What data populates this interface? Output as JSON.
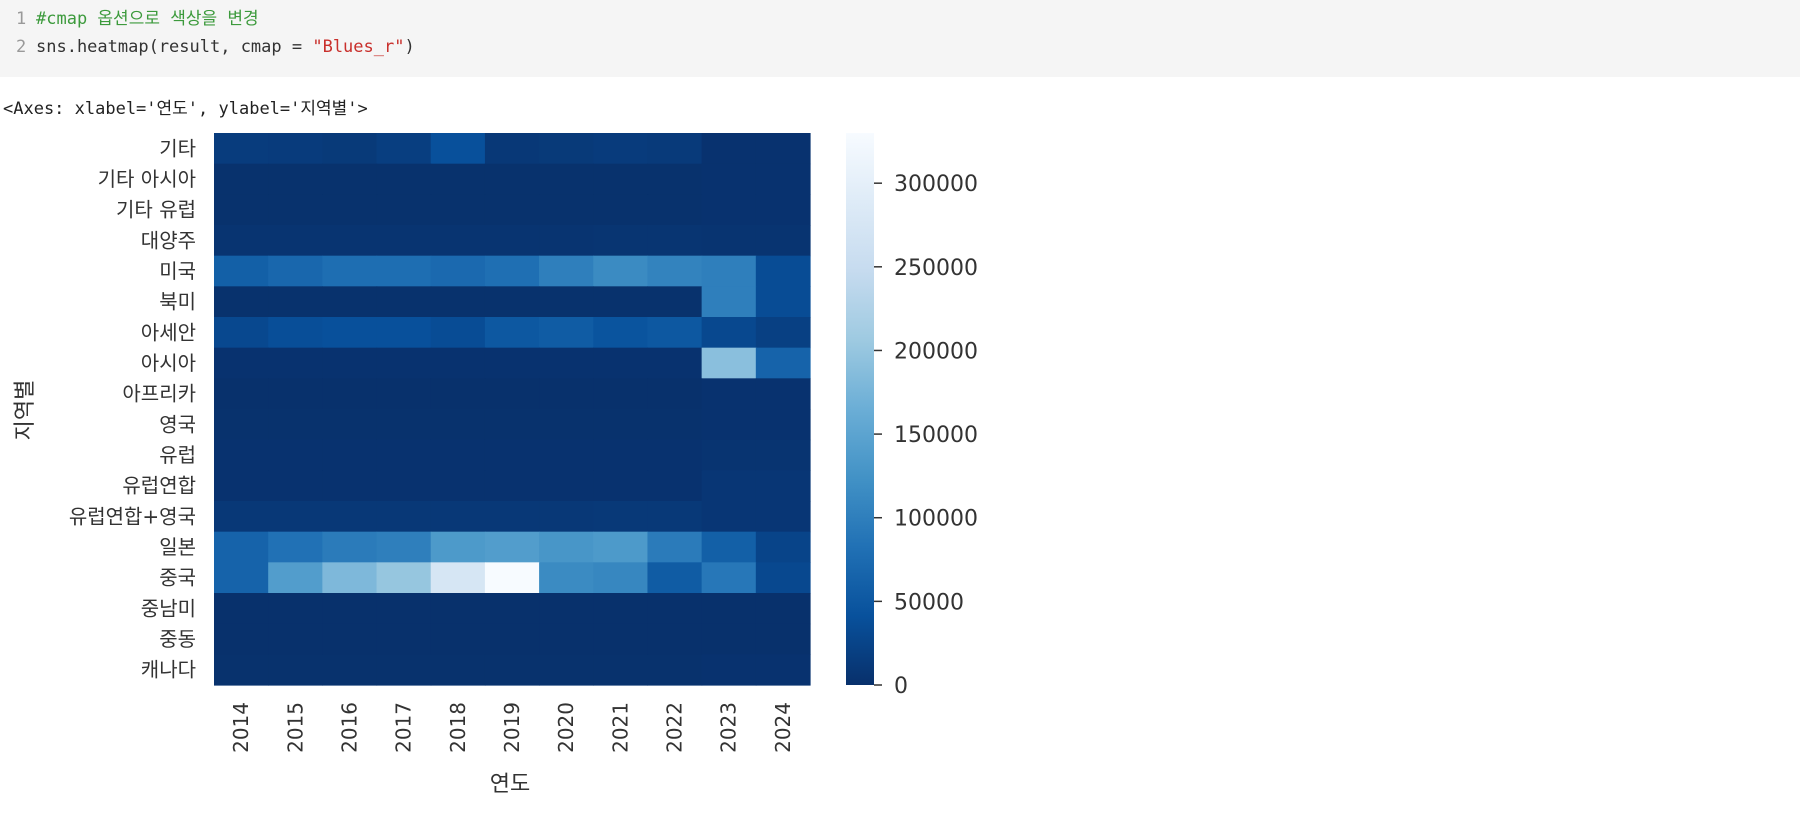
{
  "code": {
    "lines": [
      {
        "num": "1",
        "comment": "#cmap 옵션으로 색상을 변경"
      },
      {
        "num": "2",
        "pre": "sns.heatmap(result, cmap = ",
        "str": "\"Blues_r\"",
        "post": ")"
      }
    ]
  },
  "output_text": "<Axes: xlabel='연도', ylabel='지역별'>",
  "colors": {
    "cmap": "Blues_r",
    "low": "#08306b",
    "high": "#f7fbff"
  },
  "chart_data": {
    "type": "heatmap",
    "xlabel": "연도",
    "ylabel": "지역별",
    "x": [
      "2014",
      "2015",
      "2016",
      "2017",
      "2018",
      "2019",
      "2020",
      "2021",
      "2022",
      "2023",
      "2024"
    ],
    "y": [
      "기타",
      "기타 아시아",
      "기타 유럽",
      "대양주",
      "미국",
      "북미",
      "아세안",
      "아시아",
      "아프리카",
      "영국",
      "유럽",
      "유럽연합",
      "유럽연합+영국",
      "일본",
      "중국",
      "중남미",
      "중동",
      "캐나다"
    ],
    "values": [
      [
        15000,
        14000,
        12000,
        18000,
        40000,
        10000,
        12000,
        14000,
        13000,
        3000,
        3000
      ],
      [
        2000,
        2000,
        2000,
        2000,
        2000,
        2000,
        2000,
        2000,
        2000,
        3000,
        3000
      ],
      [
        2000,
        2000,
        2000,
        2000,
        2000,
        2000,
        2000,
        2000,
        2000,
        3000,
        3000
      ],
      [
        5000,
        5000,
        5000,
        5000,
        5000,
        5000,
        5000,
        6000,
        6000,
        5000,
        5000
      ],
      [
        60000,
        70000,
        78000,
        78000,
        72000,
        80000,
        100000,
        115000,
        105000,
        100000,
        35000
      ],
      [
        2000,
        2000,
        2000,
        2000,
        2000,
        2000,
        2000,
        2000,
        2000,
        100000,
        35000
      ],
      [
        30000,
        38000,
        40000,
        40000,
        35000,
        50000,
        55000,
        45000,
        50000,
        30000,
        20000
      ],
      [
        3000,
        3000,
        3000,
        3000,
        3000,
        3000,
        3000,
        3000,
        3000,
        190000,
        65000
      ],
      [
        1000,
        1000,
        1000,
        1000,
        1000,
        1000,
        1000,
        1000,
        1000,
        3000,
        3000
      ],
      [
        2000,
        2000,
        2000,
        2000,
        2000,
        2000,
        2000,
        2000,
        2000,
        3000,
        3000
      ],
      [
        3000,
        3000,
        3000,
        3000,
        3000,
        3000,
        3000,
        3000,
        3000,
        5000,
        5000
      ],
      [
        3000,
        3000,
        3000,
        3000,
        3000,
        3000,
        3000,
        3000,
        3000,
        8000,
        8000
      ],
      [
        10000,
        10000,
        10000,
        10000,
        10000,
        10000,
        10000,
        11000,
        11000,
        8000,
        8000
      ],
      [
        65000,
        82000,
        95000,
        100000,
        135000,
        140000,
        130000,
        135000,
        95000,
        60000,
        25000
      ],
      [
        65000,
        140000,
        180000,
        200000,
        275000,
        330000,
        115000,
        110000,
        55000,
        90000,
        30000
      ],
      [
        1000,
        1000,
        1000,
        1000,
        1000,
        1000,
        1000,
        1000,
        1000,
        1000,
        1000
      ],
      [
        1000,
        1000,
        1000,
        1000,
        1000,
        1000,
        1000,
        1000,
        1000,
        1000,
        1000
      ],
      [
        2000,
        2000,
        2000,
        2000,
        2000,
        2000,
        2000,
        2000,
        2000,
        3000,
        3000
      ]
    ],
    "vmin": 0,
    "vmax": 330000,
    "colorbar": {
      "ticks": [
        0,
        50000,
        100000,
        150000,
        200000,
        250000,
        300000
      ]
    }
  }
}
